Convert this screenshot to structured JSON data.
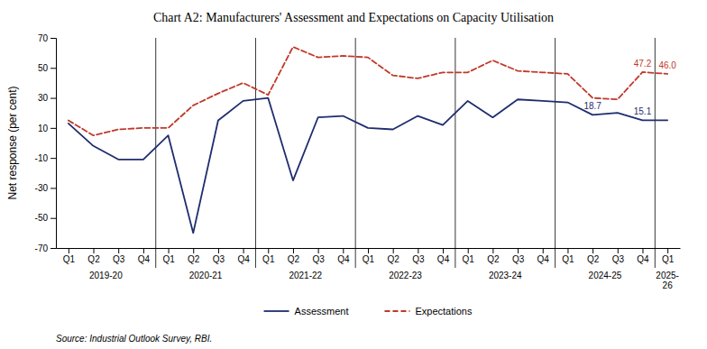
{
  "chart_data": {
    "type": "line",
    "title": "Chart A2: Manufacturers' Assessment and Expectations on Capacity Utilisation",
    "ylabel": "Net response (per cent)",
    "source": "Source: Industrial Outlook Survey, RBI.",
    "categories": [
      "Q1",
      "Q2",
      "Q3",
      "Q4",
      "Q1",
      "Q2",
      "Q3",
      "Q4",
      "Q1",
      "Q2",
      "Q3",
      "Q4",
      "Q1",
      "Q2",
      "Q3",
      "Q4",
      "Q1",
      "Q2",
      "Q3",
      "Q4",
      "Q1",
      "Q2",
      "Q3",
      "Q4",
      "Q1"
    ],
    "x_groups": [
      {
        "label": "2019-20",
        "size": 4
      },
      {
        "label": "2020-21",
        "size": 4
      },
      {
        "label": "2021-22",
        "size": 4
      },
      {
        "label": "2022-23",
        "size": 4
      },
      {
        "label": "2023-24",
        "size": 4
      },
      {
        "label": "2024-25",
        "size": 4
      },
      {
        "label": "2025-\n26",
        "size": 1
      }
    ],
    "series": [
      {
        "name": "Assessment",
        "color": "#1f2d6e",
        "line_style": "solid",
        "values": [
          13,
          -2,
          -11,
          -11,
          5,
          -60,
          15,
          28,
          30,
          -25,
          17,
          18,
          10,
          9,
          18,
          12,
          28,
          17,
          29,
          28,
          27,
          18.7,
          20,
          15.1,
          15.1
        ],
        "value_labels": [
          null,
          null,
          null,
          null,
          null,
          null,
          null,
          null,
          null,
          null,
          null,
          null,
          null,
          null,
          null,
          null,
          null,
          null,
          null,
          null,
          null,
          "18.7",
          null,
          "15.1",
          null
        ]
      },
      {
        "name": "Expectations",
        "color": "#c0392b",
        "line_style": "dashed",
        "values": [
          15,
          5,
          9,
          10,
          10,
          25,
          33,
          40,
          32,
          64,
          57,
          58,
          57,
          45,
          43,
          47,
          47,
          55,
          48,
          47,
          46,
          30,
          29,
          47.2,
          46.0
        ],
        "value_labels": [
          null,
          null,
          null,
          null,
          null,
          null,
          null,
          null,
          null,
          null,
          null,
          null,
          null,
          null,
          null,
          null,
          null,
          null,
          null,
          null,
          null,
          null,
          null,
          "47.2",
          "46.0"
        ]
      }
    ],
    "ylim": [
      -70,
      70
    ],
    "yticks": [
      -70,
      -50,
      -30,
      -10,
      10,
      30,
      50,
      70
    ],
    "grid": false,
    "legend": "bottom"
  }
}
